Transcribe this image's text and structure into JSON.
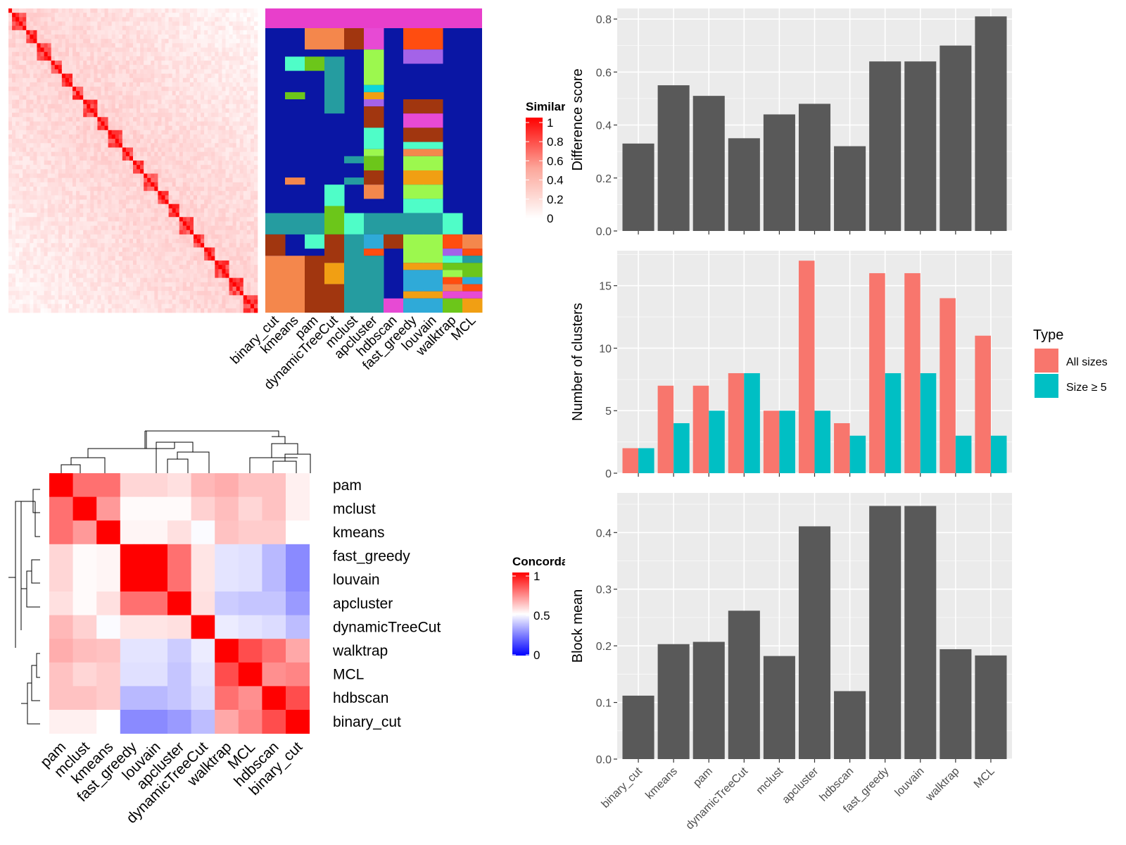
{
  "methods": [
    "binary_cut",
    "kmeans",
    "pam",
    "dynamicTreeCut",
    "mclust",
    "apcluster",
    "hdbscan",
    "fast_greedy",
    "louvain",
    "walktrap",
    "MCL"
  ],
  "similarity_heatmap": {
    "legend_title": "Similarity",
    "legend_ticks": [
      "1",
      "0.8",
      "0.6",
      "0.4",
      "0.2",
      "0"
    ],
    "n_terms": 70,
    "column_labels": [
      "binary_cut",
      "kmeans",
      "pam",
      "dynamicTreeCut",
      "mclust",
      "apcluster",
      "hdbscan",
      "fast_greedy",
      "louvain",
      "walktrap",
      "MCL"
    ],
    "annotation_header_color": "#E83FCB",
    "annotation_background_color": "#0A16A4",
    "annotation_palette": [
      "#F4874C",
      "#9CF84E",
      "#A1360F",
      "#259CA0",
      "#4FFDC8",
      "#E74AD4",
      "#6CC61A",
      "#F19F13",
      "#A463E8",
      "#2FAAD8",
      "#FF4D10",
      "#0DD6D9"
    ]
  },
  "concordance_heatmap": {
    "legend_title": "Concordance",
    "legend_ticks": [
      "1",
      "0.5",
      "0"
    ],
    "order": [
      "pam",
      "mclust",
      "kmeans",
      "fast_greedy",
      "louvain",
      "apcluster",
      "dynamicTreeCut",
      "walktrap",
      "MCL",
      "hdbscan",
      "binary_cut"
    ],
    "matrix": [
      [
        1.0,
        0.78,
        0.78,
        0.58,
        0.58,
        0.56,
        0.64,
        0.66,
        0.62,
        0.62,
        0.53
      ],
      [
        0.78,
        1.0,
        0.7,
        0.51,
        0.51,
        0.51,
        0.59,
        0.63,
        0.58,
        0.62,
        0.53
      ],
      [
        0.78,
        0.7,
        1.0,
        0.52,
        0.52,
        0.56,
        0.49,
        0.62,
        0.6,
        0.6,
        0.5
      ],
      [
        0.58,
        0.51,
        0.52,
        1.0,
        1.0,
        0.78,
        0.55,
        0.43,
        0.42,
        0.32,
        0.2
      ],
      [
        0.58,
        0.51,
        0.52,
        1.0,
        1.0,
        0.78,
        0.55,
        0.43,
        0.42,
        0.32,
        0.2
      ],
      [
        0.56,
        0.51,
        0.56,
        0.78,
        0.78,
        1.0,
        0.56,
        0.37,
        0.35,
        0.35,
        0.24
      ],
      [
        0.64,
        0.59,
        0.49,
        0.55,
        0.55,
        0.56,
        1.0,
        0.45,
        0.43,
        0.41,
        0.33
      ],
      [
        0.66,
        0.63,
        0.62,
        0.43,
        0.43,
        0.37,
        0.45,
        1.0,
        0.85,
        0.78,
        0.67
      ],
      [
        0.62,
        0.58,
        0.6,
        0.42,
        0.42,
        0.35,
        0.43,
        0.85,
        1.0,
        0.72,
        0.74
      ],
      [
        0.62,
        0.62,
        0.6,
        0.32,
        0.32,
        0.35,
        0.41,
        0.78,
        0.72,
        1.0,
        0.85
      ],
      [
        0.53,
        0.53,
        0.5,
        0.2,
        0.2,
        0.24,
        0.33,
        0.67,
        0.74,
        0.85,
        1.0
      ]
    ]
  },
  "chart_data": [
    {
      "type": "bar",
      "categories": [
        "binary_cut",
        "kmeans",
        "pam",
        "dynamicTreeCut",
        "mclust",
        "apcluster",
        "hdbscan",
        "fast_greedy",
        "louvain",
        "walktrap",
        "MCL"
      ],
      "values": [
        0.33,
        0.55,
        0.51,
        0.35,
        0.44,
        0.48,
        0.32,
        0.64,
        0.64,
        0.7,
        0.81
      ],
      "ylabel": "Difference score",
      "ylim": [
        0,
        0.84
      ],
      "yticks": [
        "0.0",
        "0.2",
        "0.4",
        "0.6",
        "0.8"
      ],
      "grid": true,
      "fill": "#595959"
    },
    {
      "type": "bar",
      "categories": [
        "binary_cut",
        "kmeans",
        "pam",
        "dynamicTreeCut",
        "mclust",
        "apcluster",
        "hdbscan",
        "fast_greedy",
        "louvain",
        "walktrap",
        "MCL"
      ],
      "series": [
        {
          "name": "All sizes",
          "values": [
            2,
            7,
            7,
            8,
            5,
            17,
            4,
            16,
            16,
            14,
            11
          ],
          "color": "#F8766D"
        },
        {
          "name": "Size ≥ 5",
          "values": [
            2,
            4,
            5,
            8,
            5,
            5,
            3,
            8,
            8,
            3,
            3
          ],
          "color": "#00BFC4"
        }
      ],
      "ylabel": "Number of clusters",
      "ylim": [
        0,
        17.8
      ],
      "yticks": [
        "0",
        "5",
        "10",
        "15"
      ],
      "legend_title": "Type",
      "legend_position": "right",
      "grid": true
    },
    {
      "type": "bar",
      "categories": [
        "binary_cut",
        "kmeans",
        "pam",
        "dynamicTreeCut",
        "mclust",
        "apcluster",
        "hdbscan",
        "fast_greedy",
        "louvain",
        "walktrap",
        "MCL"
      ],
      "values": [
        0.112,
        0.203,
        0.207,
        0.262,
        0.182,
        0.411,
        0.12,
        0.447,
        0.447,
        0.194,
        0.183
      ],
      "ylabel": "Block mean",
      "ylim": [
        0,
        0.47
      ],
      "yticks": [
        "0.0",
        "0.1",
        "0.2",
        "0.3",
        "0.4"
      ],
      "grid": true,
      "fill": "#595959"
    }
  ]
}
